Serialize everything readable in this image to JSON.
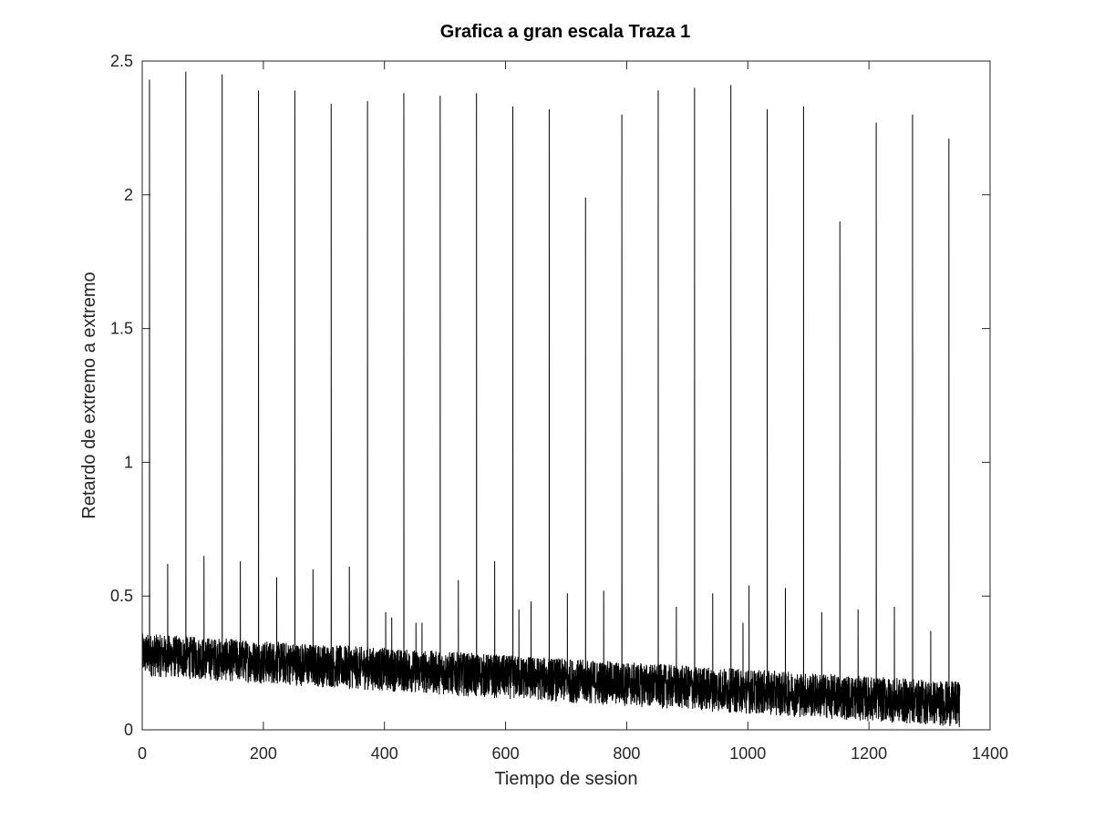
{
  "chart_data": {
    "type": "line",
    "title": "Grafica a gran escala Traza 1",
    "xlabel": "Tiempo de sesion",
    "ylabel": "Retardo de extremo a extremo",
    "xlim": [
      0,
      1400
    ],
    "ylim": [
      0,
      2.5
    ],
    "xticks": [
      0,
      200,
      400,
      600,
      800,
      1000,
      1200,
      1400
    ],
    "yticks": [
      0,
      0.5,
      1,
      1.5,
      2,
      2.5
    ],
    "xtick_labels": [
      "0",
      "200",
      "400",
      "600",
      "800",
      "1000",
      "1200",
      "1400"
    ],
    "ytick_labels": [
      "0",
      "0.5",
      "1",
      "1.5",
      "2",
      "2.5"
    ],
    "grid": false,
    "box": true,
    "line_color": "#000000",
    "series": [
      {
        "description_hidden": "",
        "baseline_start": [
          0,
          0.2
        ],
        "baseline_end": [
          1350,
          0.01
        ],
        "noise_band_start_upper": 0.36,
        "noise_band_end_upper": 0.18,
        "x_end": 1350,
        "large_spikes": [
          {
            "x": 12,
            "y": 2.43
          },
          {
            "x": 72,
            "y": 2.46
          },
          {
            "x": 132,
            "y": 2.45
          },
          {
            "x": 192,
            "y": 2.39
          },
          {
            "x": 252,
            "y": 2.39
          },
          {
            "x": 312,
            "y": 2.34
          },
          {
            "x": 372,
            "y": 2.35
          },
          {
            "x": 432,
            "y": 2.38
          },
          {
            "x": 492,
            "y": 2.37
          },
          {
            "x": 552,
            "y": 2.38
          },
          {
            "x": 612,
            "y": 2.33
          },
          {
            "x": 672,
            "y": 2.32
          },
          {
            "x": 732,
            "y": 1.99
          },
          {
            "x": 792,
            "y": 2.3
          },
          {
            "x": 852,
            "y": 2.39
          },
          {
            "x": 912,
            "y": 2.4
          },
          {
            "x": 972,
            "y": 2.41
          },
          {
            "x": 1032,
            "y": 2.32
          },
          {
            "x": 1092,
            "y": 2.33
          },
          {
            "x": 1152,
            "y": 1.9
          },
          {
            "x": 1212,
            "y": 2.27
          },
          {
            "x": 1272,
            "y": 2.3
          },
          {
            "x": 1332,
            "y": 2.21
          }
        ],
        "medium_spikes": [
          {
            "x": 42,
            "y": 0.62
          },
          {
            "x": 102,
            "y": 0.65
          },
          {
            "x": 162,
            "y": 0.63
          },
          {
            "x": 222,
            "y": 0.57
          },
          {
            "x": 282,
            "y": 0.6
          },
          {
            "x": 342,
            "y": 0.61
          },
          {
            "x": 402,
            "y": 0.44
          },
          {
            "x": 412,
            "y": 0.42
          },
          {
            "x": 452,
            "y": 0.4
          },
          {
            "x": 462,
            "y": 0.4
          },
          {
            "x": 522,
            "y": 0.56
          },
          {
            "x": 582,
            "y": 0.63
          },
          {
            "x": 622,
            "y": 0.45
          },
          {
            "x": 642,
            "y": 0.48
          },
          {
            "x": 702,
            "y": 0.51
          },
          {
            "x": 762,
            "y": 0.52
          },
          {
            "x": 882,
            "y": 0.46
          },
          {
            "x": 942,
            "y": 0.51
          },
          {
            "x": 992,
            "y": 0.4
          },
          {
            "x": 1002,
            "y": 0.54
          },
          {
            "x": 1062,
            "y": 0.53
          },
          {
            "x": 1122,
            "y": 0.44
          },
          {
            "x": 1182,
            "y": 0.45
          },
          {
            "x": 1242,
            "y": 0.46
          },
          {
            "x": 1302,
            "y": 0.37
          },
          {
            "x": 1342,
            "y": 0.18
          }
        ]
      }
    ]
  }
}
